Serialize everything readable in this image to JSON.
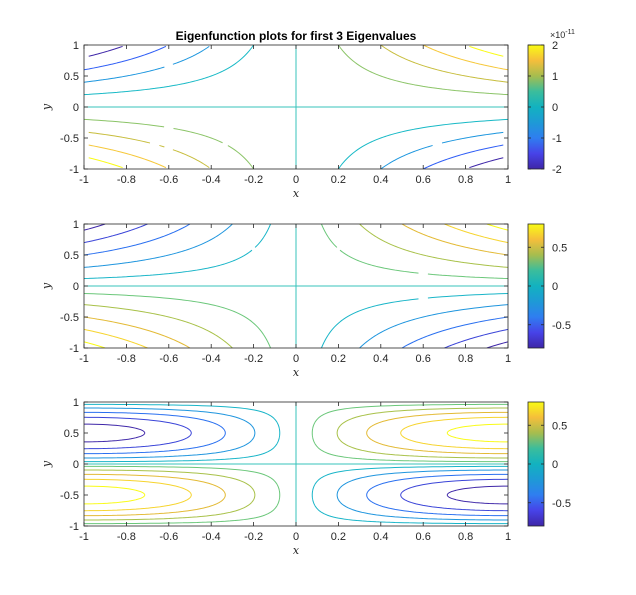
{
  "figure": {
    "title": "Eigenfunction plots for first 3 Eigenvalues"
  },
  "chart_data": [
    {
      "type": "contour",
      "title": "Eigenfunction plots for first 3 Eigenvalues",
      "xlabel": "x",
      "ylabel": "y",
      "xlim": [
        -1,
        1
      ],
      "ylim": [
        -1,
        1
      ],
      "xticks": [
        "-1",
        "-0.8",
        "-0.6",
        "-0.4",
        "-0.2",
        "0",
        "0.2",
        "0.4",
        "0.6",
        "0.8",
        "1"
      ],
      "yticks": [
        "1",
        "0.5",
        "0",
        "-0.5",
        "-1"
      ],
      "function": "x*y scaled",
      "clim": [
        -2,
        2
      ],
      "colorbar_ticks": [
        "2",
        "1",
        "0",
        "-1",
        "-2"
      ],
      "colorbar_exponent_base": "×10",
      "colorbar_exponent": "-11",
      "levels_normalized": [
        -0.8,
        -0.6,
        -0.4,
        -0.2,
        0,
        0.2,
        0.4,
        0.6,
        0.8
      ],
      "level_colors": [
        "#3e26a8",
        "#2f5ef6",
        "#1a95de",
        "#17b9c6",
        "#37c3bb",
        "#8bc467",
        "#c7bd3c",
        "#f6c83a",
        "#f9fb15"
      ]
    },
    {
      "type": "contour",
      "title": "",
      "xlabel": "x",
      "ylabel": "y",
      "xlim": [
        -1,
        1
      ],
      "ylim": [
        -1,
        1
      ],
      "xticks": [
        "-1",
        "-0.8",
        "-0.6",
        "-0.4",
        "-0.2",
        "0",
        "0.2",
        "0.4",
        "0.6",
        "0.8",
        "1"
      ],
      "yticks": [
        "1",
        "0.5",
        "0",
        "-0.5",
        "-1"
      ],
      "function": "x*y scaled",
      "clim": [
        -0.8,
        0.8
      ],
      "colorbar_ticks": [
        "0.5",
        "0",
        "-0.5"
      ],
      "levels_normalized": [
        -0.9,
        -0.7,
        -0.5,
        -0.3,
        -0.12,
        0,
        0.12,
        0.3,
        0.5,
        0.7,
        0.9
      ],
      "level_colors": [
        "#3e26a8",
        "#3a44d8",
        "#2a70f0",
        "#1e95de",
        "#19b5c8",
        "#37c3bb",
        "#6bc77a",
        "#a8c148",
        "#e3ba35",
        "#f6d42e",
        "#f9fb15"
      ]
    },
    {
      "type": "contour",
      "title": "",
      "xlabel": "x",
      "ylabel": "y",
      "xlim": [
        -1,
        1
      ],
      "ylim": [
        -1,
        1
      ],
      "xticks": [
        "-1",
        "-0.8",
        "-0.6",
        "-0.4",
        "-0.2",
        "0",
        "0.2",
        "0.4",
        "0.6",
        "0.8",
        "1"
      ],
      "yticks": [
        "1",
        "0.5",
        "0",
        "-0.5",
        "-1"
      ],
      "function": "sin(pi*x/2)*sin(pi*y) scaled",
      "clim": [
        -0.8,
        0.8
      ],
      "colorbar_ticks": [
        "0.5",
        "0",
        "-0.5"
      ],
      "levels_normalized": [
        -0.9,
        -0.7,
        -0.5,
        -0.3,
        -0.12,
        0,
        0.12,
        0.3,
        0.5,
        0.7,
        0.9
      ],
      "level_colors": [
        "#3e26a8",
        "#3a44d8",
        "#2a70f0",
        "#1e95de",
        "#19b5c8",
        "#37c3bb",
        "#6bc77a",
        "#a8c148",
        "#e3ba35",
        "#f6d42e",
        "#f9fb15"
      ]
    }
  ],
  "colors": {
    "axis": "#262626",
    "background": "#ffffff"
  }
}
